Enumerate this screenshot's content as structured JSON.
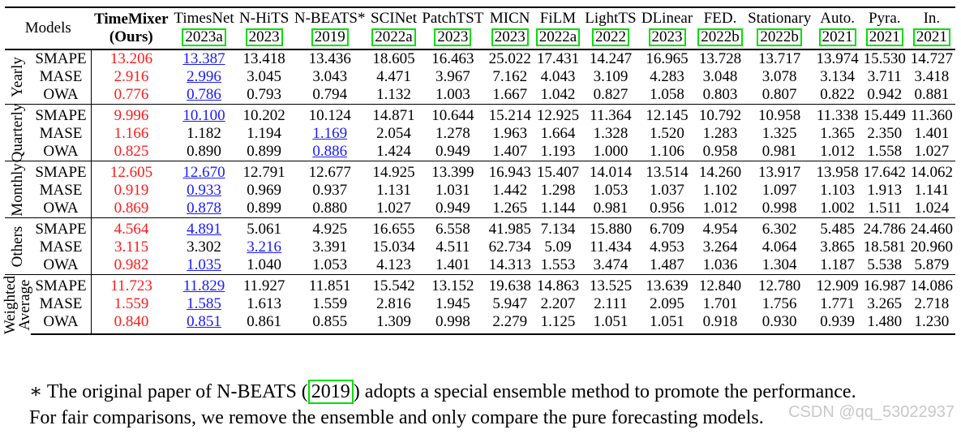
{
  "header": {
    "models_label": "Models",
    "columns": [
      {
        "name": "TimeMixer",
        "year": "(Ours)"
      },
      {
        "name": "TimesNet",
        "year": "2023a"
      },
      {
        "name": "N-HiTS",
        "year": "2023"
      },
      {
        "name": "N-BEATS*",
        "year": "2019"
      },
      {
        "name": "SCINet",
        "year": "2022a"
      },
      {
        "name": "PatchTST",
        "year": "2023"
      },
      {
        "name": "MICN",
        "year": "2023"
      },
      {
        "name": "FiLM",
        "year": "2022a"
      },
      {
        "name": "LightTS",
        "year": "2022"
      },
      {
        "name": "DLinear",
        "year": "2023"
      },
      {
        "name": "FED.",
        "year": "2022b"
      },
      {
        "name": "Stationary",
        "year": "2022b"
      },
      {
        "name": "Auto.",
        "year": "2021"
      },
      {
        "name": "Pyra.",
        "year": "2021"
      },
      {
        "name": "In.",
        "year": "2021"
      }
    ]
  },
  "groups": [
    {
      "label": "Yearly",
      "rows": [
        {
          "metric": "SMAPE",
          "values": [
            "13.206",
            "13.387",
            "13.418",
            "13.436",
            "18.605",
            "16.463",
            "25.022",
            "17.431",
            "14.247",
            "16.965",
            "13.728",
            "13.717",
            "13.974",
            "15.530",
            "14.727"
          ],
          "second": [
            1
          ]
        },
        {
          "metric": "MASE",
          "values": [
            "2.916",
            "2.996",
            "3.045",
            "3.043",
            "4.471",
            "3.967",
            "7.162",
            "4.043",
            "3.109",
            "4.283",
            "3.048",
            "3.078",
            "3.134",
            "3.711",
            "3.418"
          ],
          "second": [
            1
          ]
        },
        {
          "metric": "OWA",
          "values": [
            "0.776",
            "0.786",
            "0.793",
            "0.794",
            "1.132",
            "1.003",
            "1.667",
            "1.042",
            "0.827",
            "1.058",
            "0.803",
            "0.807",
            "0.822",
            "0.942",
            "0.881"
          ],
          "second": [
            1
          ]
        }
      ]
    },
    {
      "label": "Quarterly",
      "rows": [
        {
          "metric": "SMAPE",
          "values": [
            "9.996",
            "10.100",
            "10.202",
            "10.124",
            "14.871",
            "10.644",
            "15.214",
            "12.925",
            "11.364",
            "12.145",
            "10.792",
            "10.958",
            "11.338",
            "15.449",
            "11.360"
          ],
          "second": [
            1
          ]
        },
        {
          "metric": "MASE",
          "values": [
            "1.166",
            "1.182",
            "1.194",
            "1.169",
            "2.054",
            "1.278",
            "1.963",
            "1.664",
            "1.328",
            "1.520",
            "1.283",
            "1.325",
            "1.365",
            "2.350",
            "1.401"
          ],
          "second": [
            3
          ]
        },
        {
          "metric": "OWA",
          "values": [
            "0.825",
            "0.890",
            "0.899",
            "0.886",
            "1.424",
            "0.949",
            "1.407",
            "1.193",
            "1.000",
            "1.106",
            "0.958",
            "0.981",
            "1.012",
            "1.558",
            "1.027"
          ],
          "second": [
            3
          ]
        }
      ]
    },
    {
      "label": "Monthly",
      "rows": [
        {
          "metric": "SMAPE",
          "values": [
            "12.605",
            "12.670",
            "12.791",
            "12.677",
            "14.925",
            "13.399",
            "16.943",
            "15.407",
            "14.014",
            "13.514",
            "14.260",
            "13.917",
            "13.958",
            "17.642",
            "14.062"
          ],
          "second": [
            1
          ]
        },
        {
          "metric": "MASE",
          "values": [
            "0.919",
            "0.933",
            "0.969",
            "0.937",
            "1.131",
            "1.031",
            "1.442",
            "1.298",
            "1.053",
            "1.037",
            "1.102",
            "1.097",
            "1.103",
            "1.913",
            "1.141"
          ],
          "second": [
            1
          ]
        },
        {
          "metric": "OWA",
          "values": [
            "0.869",
            "0.878",
            "0.899",
            "0.880",
            "1.027",
            "0.949",
            "1.265",
            "1.144",
            "0.981",
            "0.956",
            "1.012",
            "0.998",
            "1.002",
            "1.511",
            "1.024"
          ],
          "second": [
            1
          ]
        }
      ]
    },
    {
      "label": "Others",
      "rows": [
        {
          "metric": "SMAPE",
          "values": [
            "4.564",
            "4.891",
            "5.061",
            "4.925",
            "16.655",
            "6.558",
            "41.985",
            "7.134",
            "15.880",
            "6.709",
            "4.954",
            "6.302",
            "5.485",
            "24.786",
            "24.460"
          ],
          "second": [
            1
          ]
        },
        {
          "metric": "MASE",
          "values": [
            "3.115",
            "3.302",
            "3.216",
            "3.391",
            "15.034",
            "4.511",
            "62.734",
            "5.09",
            "11.434",
            "4.953",
            "3.264",
            "4.064",
            "3.865",
            "18.581",
            "20.960"
          ],
          "second": [
            2
          ]
        },
        {
          "metric": "OWA",
          "values": [
            "0.982",
            "1.035",
            "1.040",
            "1.053",
            "4.123",
            "1.401",
            "14.313",
            "1.553",
            "3.474",
            "1.487",
            "1.036",
            "1.304",
            "1.187",
            "5.538",
            "5.879"
          ],
          "second": [
            1
          ]
        }
      ]
    },
    {
      "label": "Weighted Average",
      "label_lines": [
        "Weighted",
        "Average"
      ],
      "rows": [
        {
          "metric": "SMAPE",
          "values": [
            "11.723",
            "11.829",
            "11.927",
            "11.851",
            "15.542",
            "13.152",
            "19.638",
            "14.863",
            "13.525",
            "13.639",
            "12.840",
            "12.780",
            "12.909",
            "16.987",
            "14.086"
          ],
          "second": [
            1
          ]
        },
        {
          "metric": "MASE",
          "values": [
            "1.559",
            "1.585",
            "1.613",
            "1.559",
            "2.816",
            "1.945",
            "5.947",
            "2.207",
            "2.111",
            "2.095",
            "1.701",
            "1.756",
            "1.771",
            "3.265",
            "2.718"
          ],
          "second": [
            1
          ]
        },
        {
          "metric": "OWA",
          "values": [
            "0.840",
            "0.851",
            "0.861",
            "0.855",
            "1.309",
            "0.998",
            "2.279",
            "1.125",
            "1.051",
            "1.051",
            "0.918",
            "0.930",
            "0.939",
            "1.480",
            "1.230"
          ],
          "second": [
            1
          ]
        }
      ]
    }
  ],
  "colors": {
    "best": "#ff1a1a",
    "second": "#1a1aff",
    "citation_box": "#00e000"
  },
  "footnote": {
    "star": "∗",
    "line1_before": " The original paper of N-BEATS (",
    "line1_year": "2019",
    "line1_after": ") adopts a special ensemble method to promote the performance.",
    "line2": "For fair comparisons, we remove the ensemble and only compare the pure forecasting models."
  },
  "watermark": "CSDN @qq_53022937"
}
